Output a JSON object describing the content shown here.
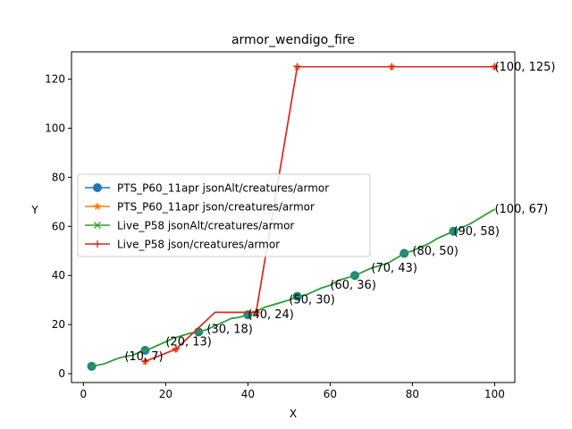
{
  "chart_data": {
    "type": "line",
    "title": "armor_wendigo_fire",
    "xlabel": "X",
    "ylabel": "Y",
    "xlim": [
      -2.9,
      104.9
    ],
    "ylim": [
      -3.6,
      131.1
    ],
    "xticks": [
      0,
      20,
      40,
      60,
      80,
      100
    ],
    "yticks": [
      0,
      20,
      40,
      60,
      80,
      100,
      120
    ],
    "grid": false,
    "legend_position": "center-left",
    "series": [
      {
        "name": "PTS_P60_11apr jsonAlt/creatures/armor",
        "color": "#1f77b4",
        "marker": "circle",
        "x": [
          2,
          5,
          8,
          10,
          12,
          14,
          16,
          18,
          20,
          22,
          24,
          26,
          28,
          30,
          32,
          34,
          36,
          38,
          40,
          42,
          44,
          46,
          48,
          50,
          52,
          54,
          56,
          58,
          60,
          62,
          64,
          66,
          68,
          70,
          72,
          74,
          76,
          78,
          80,
          82,
          84,
          86,
          88,
          90,
          92,
          94,
          96,
          98,
          100
        ],
        "y": [
          3,
          4,
          6,
          7,
          7.5,
          9,
          10,
          11.5,
          13,
          14.5,
          15.5,
          16.5,
          17,
          18,
          19.5,
          21,
          22.5,
          23,
          24,
          25.5,
          27,
          28,
          29,
          30,
          31.5,
          32,
          33.5,
          35,
          36,
          38,
          39,
          40,
          41.5,
          43,
          44,
          45,
          47,
          49,
          50,
          51.5,
          53,
          55,
          56.5,
          58,
          59.5,
          61,
          63,
          65,
          67
        ],
        "markers_x": [
          2,
          15,
          28,
          40,
          52,
          66,
          78,
          90
        ],
        "markers_y": [
          3,
          9.5,
          17,
          24,
          31.5,
          40,
          49,
          58
        ]
      },
      {
        "name": "PTS_P60_11apr json/creatures/armor",
        "color": "#ff7f0e",
        "marker": "star",
        "x": [
          15,
          22.5,
          32,
          42,
          52,
          75,
          100
        ],
        "y": [
          5,
          10,
          25,
          25,
          125,
          125,
          125
        ],
        "markers_x": [
          15,
          22.5,
          42,
          52,
          75,
          100
        ],
        "markers_y": [
          5,
          10,
          25,
          125,
          125,
          125
        ]
      },
      {
        "name": "Live_P58 jsonAlt/creatures/armor",
        "color": "#2ca02c",
        "marker": "x",
        "x": [
          2,
          5,
          8,
          10,
          12,
          14,
          16,
          18,
          20,
          22,
          24,
          26,
          28,
          30,
          32,
          34,
          36,
          38,
          40,
          42,
          44,
          46,
          48,
          50,
          52,
          54,
          56,
          58,
          60,
          62,
          64,
          66,
          68,
          70,
          72,
          74,
          76,
          78,
          80,
          82,
          84,
          86,
          88,
          90,
          92,
          94,
          96,
          98,
          100
        ],
        "y": [
          3,
          4,
          6,
          7,
          7.5,
          9,
          10,
          11.5,
          13,
          14.5,
          15.5,
          16.5,
          17,
          18,
          19.5,
          21,
          22.5,
          23,
          24,
          25.5,
          27,
          28,
          29,
          30,
          31.5,
          32,
          33.5,
          35,
          36,
          38,
          39,
          40,
          41.5,
          43,
          44,
          45,
          47,
          49,
          50,
          51.5,
          53,
          55,
          56.5,
          58,
          59.5,
          61,
          63,
          65,
          67
        ],
        "markers_x": [
          2,
          15,
          28,
          40,
          52,
          66,
          78,
          90
        ],
        "markers_y": [
          3,
          9.5,
          17,
          24,
          31.5,
          40,
          49,
          58
        ]
      },
      {
        "name": "Live_P58 json/creatures/armor",
        "color": "#d62728",
        "marker": "plus",
        "x": [
          15,
          22.5,
          32,
          42,
          52,
          75,
          100
        ],
        "y": [
          5,
          10,
          25,
          25,
          125,
          125,
          125
        ],
        "markers_x": [
          15,
          22.5,
          42,
          52,
          75,
          100
        ],
        "markers_y": [
          5,
          10,
          25,
          125,
          125,
          125
        ]
      }
    ],
    "annotations": [
      {
        "text": "(10, 7)",
        "x": 10,
        "y": 7
      },
      {
        "text": "(20, 13)",
        "x": 20,
        "y": 13
      },
      {
        "text": "(30, 18)",
        "x": 30,
        "y": 18
      },
      {
        "text": "(40, 24)",
        "x": 40,
        "y": 24
      },
      {
        "text": "(50, 30)",
        "x": 50,
        "y": 30
      },
      {
        "text": "(60, 36)",
        "x": 60,
        "y": 36
      },
      {
        "text": "(70, 43)",
        "x": 70,
        "y": 43
      },
      {
        "text": "(80, 50)",
        "x": 80,
        "y": 50
      },
      {
        "text": "(90, 58)",
        "x": 90,
        "y": 58
      },
      {
        "text": "(100, 67)",
        "x": 100,
        "y": 67
      },
      {
        "text": "(100, 125)",
        "x": 100,
        "y": 125
      }
    ]
  }
}
